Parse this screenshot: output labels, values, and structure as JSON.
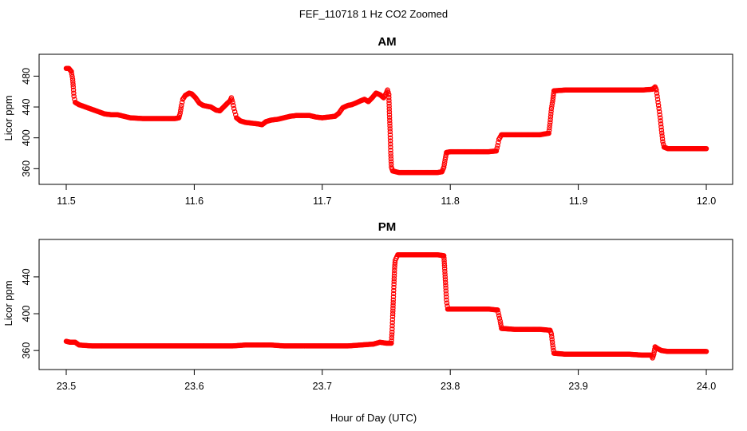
{
  "figure": {
    "suptitle": "FEF_110718  1 Hz CO2 Zoomed",
    "xlabel": "Hour of Day (UTC)"
  },
  "chart_data": [
    {
      "type": "scatter",
      "title": "AM",
      "xlabel": "",
      "ylabel": "Licor ppm",
      "xlim": [
        11.5,
        12.0
      ],
      "ylim": [
        350,
        498
      ],
      "xticks": [
        "11.5",
        "11.6",
        "11.7",
        "11.8",
        "11.9",
        "12.0"
      ],
      "yticks": [
        "360",
        "400",
        "440",
        "480"
      ],
      "marker_color": "#ff0000",
      "marker": "open-circle",
      "series": [
        {
          "points": [
            [
              11.5,
              490
            ],
            [
              11.502,
              490
            ],
            [
              11.503,
              488
            ],
            [
              11.504,
              486
            ],
            [
              11.505,
              476
            ],
            [
              11.5055,
              466
            ],
            [
              11.506,
              454
            ],
            [
              11.507,
              446
            ],
            [
              11.51,
              443
            ],
            [
              11.515,
              440
            ],
            [
              11.52,
              437
            ],
            [
              11.525,
              434
            ],
            [
              11.53,
              431
            ],
            [
              11.535,
              430
            ],
            [
              11.54,
              430
            ],
            [
              11.545,
              428
            ],
            [
              11.55,
              426
            ],
            [
              11.56,
              425
            ],
            [
              11.57,
              425
            ],
            [
              11.58,
              425
            ],
            [
              11.585,
              425
            ],
            [
              11.588,
              426
            ],
            [
              11.589,
              432
            ],
            [
              11.59,
              442
            ],
            [
              11.591,
              450
            ],
            [
              11.593,
              455
            ],
            [
              11.596,
              458
            ],
            [
              11.598,
              457
            ],
            [
              11.601,
              452
            ],
            [
              11.604,
              445
            ],
            [
              11.607,
              442
            ],
            [
              11.61,
              441
            ],
            [
              11.613,
              440
            ],
            [
              11.617,
              436
            ],
            [
              11.62,
              435
            ],
            [
              11.623,
              440
            ],
            [
              11.626,
              445
            ],
            [
              11.628,
              448
            ],
            [
              11.629,
              452
            ],
            [
              11.63,
              446
            ],
            [
              11.631,
              438
            ],
            [
              11.633,
              426
            ],
            [
              11.636,
              422
            ],
            [
              11.64,
              420
            ],
            [
              11.645,
              419
            ],
            [
              11.65,
              418
            ],
            [
              11.653,
              417
            ],
            [
              11.656,
              421
            ],
            [
              11.66,
              423
            ],
            [
              11.665,
              424
            ],
            [
              11.67,
              426
            ],
            [
              11.675,
              428
            ],
            [
              11.68,
              429
            ],
            [
              11.685,
              429
            ],
            [
              11.69,
              429
            ],
            [
              11.695,
              427
            ],
            [
              11.7,
              426
            ],
            [
              11.705,
              427
            ],
            [
              11.71,
              428
            ],
            [
              11.713,
              432
            ],
            [
              11.716,
              439
            ],
            [
              11.72,
              442
            ],
            [
              11.723,
              443
            ],
            [
              11.726,
              445
            ],
            [
              11.73,
              448
            ],
            [
              11.733,
              450
            ],
            [
              11.736,
              447
            ],
            [
              11.739,
              452
            ],
            [
              11.742,
              458
            ],
            [
              11.745,
              456
            ],
            [
              11.748,
              452
            ],
            [
              11.75,
              458
            ],
            [
              11.751,
              462
            ],
            [
              11.752,
              456
            ],
            [
              11.7525,
              430
            ],
            [
              11.753,
              408
            ],
            [
              11.7535,
              380
            ],
            [
              11.754,
              362
            ],
            [
              11.755,
              357
            ],
            [
              11.76,
              355
            ],
            [
              11.77,
              355
            ],
            [
              11.78,
              355
            ],
            [
              11.79,
              355
            ],
            [
              11.7935,
              356
            ],
            [
              11.795,
              362
            ],
            [
              11.796,
              372
            ],
            [
              11.797,
              381
            ],
            [
              11.8,
              382
            ],
            [
              11.81,
              382
            ],
            [
              11.82,
              382
            ],
            [
              11.83,
              382
            ],
            [
              11.836,
              383
            ],
            [
              11.837,
              390
            ],
            [
              11.838,
              398
            ],
            [
              11.84,
              404
            ],
            [
              11.85,
              404
            ],
            [
              11.86,
              404
            ],
            [
              11.87,
              404
            ],
            [
              11.877,
              406
            ],
            [
              11.878,
              420
            ],
            [
              11.879,
              438
            ],
            [
              11.88,
              448
            ],
            [
              11.881,
              461
            ],
            [
              11.89,
              462
            ],
            [
              11.9,
              462
            ],
            [
              11.91,
              462
            ],
            [
              11.92,
              462
            ],
            [
              11.93,
              462
            ],
            [
              11.94,
              462
            ],
            [
              11.95,
              462
            ],
            [
              11.958,
              463
            ],
            [
              11.96,
              466
            ],
            [
              11.961,
              462
            ],
            [
              11.962,
              450
            ],
            [
              11.963,
              438
            ],
            [
              11.964,
              426
            ],
            [
              11.965,
              410
            ],
            [
              11.966,
              395
            ],
            [
              11.967,
              388
            ],
            [
              11.97,
              386
            ],
            [
              11.98,
              386
            ],
            [
              11.99,
              386
            ],
            [
              12.0,
              386
            ]
          ]
        }
      ]
    },
    {
      "type": "scatter",
      "title": "PM",
      "xlabel": "",
      "ylabel": "Licor ppm",
      "xlim": [
        23.5,
        24.0
      ],
      "ylim": [
        348,
        472
      ],
      "xticks": [
        "23.5",
        "23.6",
        "23.7",
        "23.8",
        "23.9",
        "24.0"
      ],
      "yticks": [
        "360",
        "400",
        "440"
      ],
      "marker_color": "#ff0000",
      "marker": "open-circle",
      "series": [
        {
          "points": [
            [
              23.5,
              370
            ],
            [
              23.503,
              369
            ],
            [
              23.507,
              369
            ],
            [
              23.51,
              366
            ],
            [
              23.52,
              365
            ],
            [
              23.53,
              365
            ],
            [
              23.54,
              365
            ],
            [
              23.55,
              365
            ],
            [
              23.56,
              365
            ],
            [
              23.57,
              365
            ],
            [
              23.58,
              365
            ],
            [
              23.59,
              365
            ],
            [
              23.6,
              365
            ],
            [
              23.61,
              365
            ],
            [
              23.62,
              365
            ],
            [
              23.63,
              365
            ],
            [
              23.64,
              366
            ],
            [
              23.65,
              366
            ],
            [
              23.66,
              366
            ],
            [
              23.67,
              365
            ],
            [
              23.68,
              365
            ],
            [
              23.69,
              365
            ],
            [
              23.7,
              365
            ],
            [
              23.71,
              365
            ],
            [
              23.72,
              365
            ],
            [
              23.73,
              366
            ],
            [
              23.74,
              367
            ],
            [
              23.745,
              369
            ],
            [
              23.75,
              368
            ],
            [
              23.754,
              368
            ],
            [
              23.7545,
              380
            ],
            [
              23.755,
              397
            ],
            [
              23.7555,
              415
            ],
            [
              23.756,
              432
            ],
            [
              23.7565,
              450
            ],
            [
              23.757,
              458
            ],
            [
              23.759,
              464
            ],
            [
              23.77,
              464
            ],
            [
              23.78,
              464
            ],
            [
              23.79,
              464
            ],
            [
              23.795,
              463
            ],
            [
              23.7955,
              452
            ],
            [
              23.796,
              440
            ],
            [
              23.7965,
              428
            ],
            [
              23.797,
              415
            ],
            [
              23.798,
              405
            ],
            [
              23.81,
              405
            ],
            [
              23.82,
              405
            ],
            [
              23.83,
              405
            ],
            [
              23.837,
              404
            ],
            [
              23.838,
              398
            ],
            [
              23.839,
              392
            ],
            [
              23.84,
              384
            ],
            [
              23.85,
              383
            ],
            [
              23.86,
              383
            ],
            [
              23.87,
              383
            ],
            [
              23.878,
              382
            ],
            [
              23.879,
              378
            ],
            [
              23.8795,
              372
            ],
            [
              23.88,
              366
            ],
            [
              23.881,
              357
            ],
            [
              23.89,
              356
            ],
            [
              23.9,
              356
            ],
            [
              23.91,
              356
            ],
            [
              23.92,
              356
            ],
            [
              23.93,
              356
            ],
            [
              23.94,
              356
            ],
            [
              23.95,
              355
            ],
            [
              23.957,
              355
            ],
            [
              23.958,
              352
            ],
            [
              23.959,
              356
            ],
            [
              23.96,
              364
            ],
            [
              23.962,
              362
            ],
            [
              23.965,
              360
            ],
            [
              23.97,
              359
            ],
            [
              23.98,
              359
            ],
            [
              23.99,
              359
            ],
            [
              24.0,
              359
            ]
          ]
        }
      ]
    }
  ]
}
